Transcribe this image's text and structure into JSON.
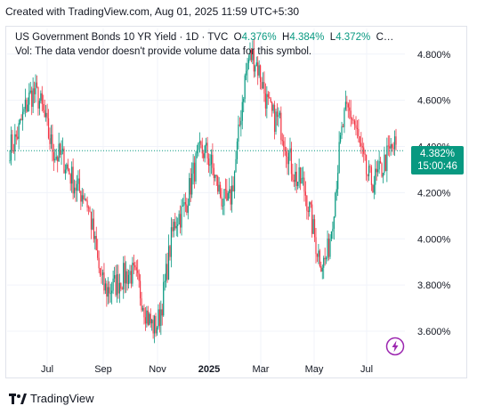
{
  "caption": "Created with TradingView.com, Aug 01, 2025 11:59 UTC+5:30",
  "legend": {
    "title": "US Government Bonds 10 YR Yield · 1D · TVC",
    "open_label": "O",
    "open_value": "4.376%",
    "high_label": "H",
    "high_value": "4.384%",
    "low_label": "L",
    "low_value": "4.372%",
    "close_label": "C…"
  },
  "volume_note": "Vol: The data vendor doesn't provide volume data for this symbol.",
  "price_tag": {
    "value": "4.382%",
    "timer": "15:00:46"
  },
  "brand": "TradingView",
  "colors": {
    "up": "#089981",
    "down": "#f23645",
    "last_line": "#089981",
    "grid": "#f0f3fa",
    "bolt": "#9c27b0"
  },
  "icons": {
    "brand_logo": "tradingview-logo-icon",
    "bolt": "lightning-bolt-icon"
  },
  "chart_data": {
    "type": "candlestick",
    "title": "US Government Bonds 10 YR Yield",
    "ylim": [
      3.5,
      4.88
    ],
    "y_ticks": [
      "4.800%",
      "4.600%",
      "4.400%",
      "4.200%",
      "4.000%",
      "3.800%",
      "3.600%"
    ],
    "x_ticks": [
      "Jul",
      "Sep",
      "Nov",
      "2025",
      "Mar",
      "May",
      "Jul"
    ],
    "last_value": 4.382,
    "series": [
      {
        "x": "2024-06",
        "close": 4.4
      },
      {
        "x": "2024-06",
        "close": 4.63
      },
      {
        "x": "2024-07",
        "close": 4.36
      },
      {
        "x": "2024-07",
        "close": 4.2
      },
      {
        "x": "2024-08",
        "close": 3.78
      },
      {
        "x": "2024-08",
        "close": 3.85
      },
      {
        "x": "2024-09",
        "close": 3.62
      },
      {
        "x": "2024-10",
        "close": 4.1
      },
      {
        "x": "2024-11",
        "close": 4.38
      },
      {
        "x": "2024-12",
        "close": 4.15
      },
      {
        "x": "2025-01",
        "close": 4.79
      },
      {
        "x": "2025-02",
        "close": 4.52
      },
      {
        "x": "2025-03",
        "close": 4.25
      },
      {
        "x": "2025-04",
        "close": 3.9
      },
      {
        "x": "2025-05",
        "close": 4.55
      },
      {
        "x": "2025-06",
        "close": 4.25
      },
      {
        "x": "2025-07",
        "close": 4.4
      }
    ]
  }
}
